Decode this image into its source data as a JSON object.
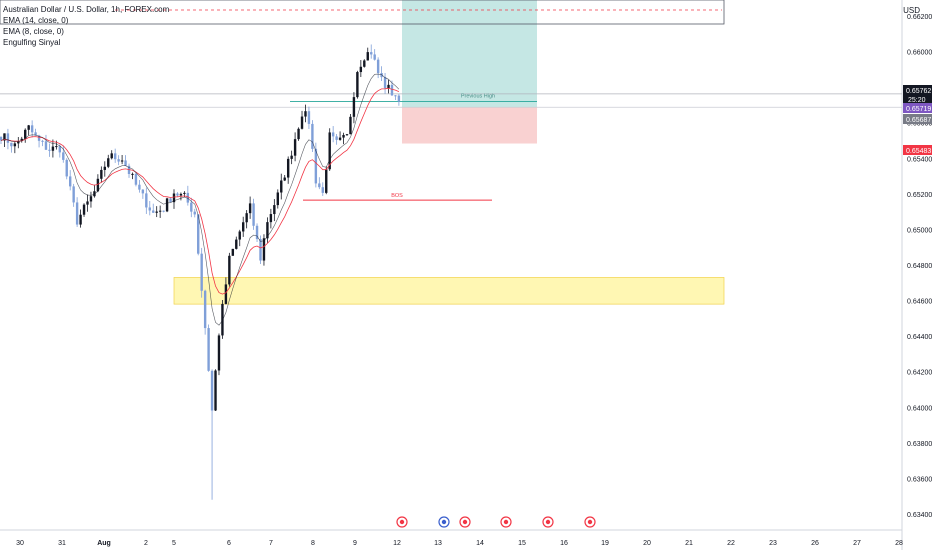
{
  "legend": {
    "symbol": "Australian Dollar / U.S. Dollar, 1h, FOREX.com",
    "ema14": "EMA (14, close, 0)",
    "ema8": "EMA (8, close, 0)",
    "indicator": "Engulfing Sinyal"
  },
  "currency": "USD",
  "colors": {
    "bull": "#131722",
    "bear": "#7f9fd8",
    "ema14": "#f23645",
    "ema8": "#131722",
    "target_zone": "#b2dfdb",
    "stop_zone": "#f8c9c9",
    "supply_zone": "#fff7b3",
    "bos": "#f23645"
  },
  "chart_data": {
    "type": "candlestick",
    "title": "Australian Dollar / U.S. Dollar, 1h, FOREX.com",
    "x_ticks": [
      "30",
      "31",
      "Aug",
      "2",
      "5",
      "6",
      "7",
      "8",
      "9",
      "12",
      "13",
      "14",
      "15",
      "16",
      "19",
      "20",
      "21",
      "22",
      "23",
      "26",
      "27",
      "28"
    ],
    "y_ticks": [
      "0.66200",
      "0.66000",
      "0.65800",
      "0.65600",
      "0.65400",
      "0.65200",
      "0.65000",
      "0.64800",
      "0.64600",
      "0.64400",
      "0.64200",
      "0.64000",
      "0.63800",
      "0.63600",
      "0.63400"
    ],
    "ylim": [
      0.6331,
      0.6629
    ],
    "price_labels": [
      {
        "label": "0.65762",
        "value": 0.65762,
        "sub": "25:20",
        "color": "#131722"
      },
      {
        "label": "0.65719",
        "value": 0.65719,
        "color": "#7e57c2"
      },
      {
        "label": "0.65687",
        "value": 0.65687,
        "color": "#787b86"
      },
      {
        "label": "0.65483",
        "value": 0.65483,
        "color": "#f23645"
      }
    ],
    "annotations": [
      {
        "text": "Previous High",
        "value": 0.65719
      },
      {
        "text": "BOS",
        "value": 0.65165
      }
    ],
    "zones": [
      {
        "name": "target",
        "top": 0.663,
        "bottom": 0.65687
      },
      {
        "name": "stop",
        "top": 0.65687,
        "bottom": 0.65483
      },
      {
        "name": "supply",
        "top": 0.6473,
        "bottom": 0.6458
      }
    ],
    "keypoints": [
      [
        0,
        0.6553
      ],
      [
        4,
        0.6547
      ],
      [
        8,
        0.6557
      ],
      [
        11,
        0.6549
      ],
      [
        14,
        0.6545
      ],
      [
        17,
        0.6546
      ],
      [
        19,
        0.653
      ],
      [
        22,
        0.6505
      ],
      [
        27,
        0.6521
      ],
      [
        31,
        0.6541
      ],
      [
        35,
        0.654
      ],
      [
        40,
        0.6521
      ],
      [
        44,
        0.6509
      ],
      [
        47,
        0.6512
      ],
      [
        50,
        0.6521
      ],
      [
        53,
        0.6518
      ],
      [
        56,
        0.6509
      ],
      [
        59,
        0.6445
      ],
      [
        61,
        0.6398
      ],
      [
        63,
        0.6442
      ],
      [
        66,
        0.6483
      ],
      [
        70,
        0.6504
      ],
      [
        72,
        0.6512
      ],
      [
        75,
        0.6484
      ],
      [
        77,
        0.6505
      ],
      [
        80,
        0.6519
      ],
      [
        84,
        0.6544
      ],
      [
        87,
        0.6566
      ],
      [
        89,
        0.6561
      ],
      [
        91,
        0.6528
      ],
      [
        93,
        0.652
      ],
      [
        95,
        0.6552
      ],
      [
        97,
        0.6548
      ],
      [
        100,
        0.6552
      ],
      [
        103,
        0.659
      ],
      [
        105,
        0.6598
      ],
      [
        107,
        0.66
      ],
      [
        109,
        0.6588
      ],
      [
        111,
        0.6581
      ],
      [
        113,
        0.6577
      ],
      [
        115,
        0.6575
      ]
    ]
  }
}
